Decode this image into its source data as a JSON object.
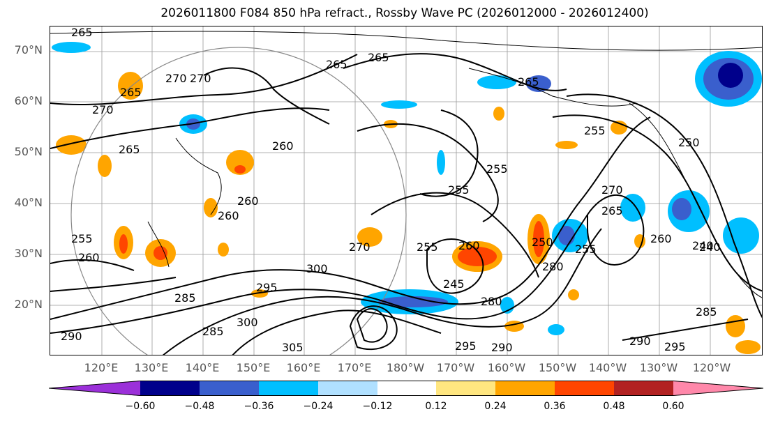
{
  "title": "2026011800 F084 850 hPa refract., Rossby Wave PC (2026012000 - 2026012400)",
  "lat_labels": [
    "70°N",
    "60°N",
    "50°N",
    "40°N",
    "30°N",
    "20°N"
  ],
  "lon_labels": [
    "120°E",
    "130°E",
    "140°E",
    "150°E",
    "160°E",
    "170°E",
    "180°W",
    "170°W",
    "160°W",
    "150°W",
    "140°W",
    "130°W",
    "120°W"
  ],
  "contour_labels": [
    "265",
    "270",
    "265",
    "265",
    "265",
    "270",
    "265",
    "270",
    "260",
    "255",
    "255",
    "265",
    "260",
    "260",
    "255",
    "260",
    "270",
    "255",
    "260",
    "245",
    "250",
    "280",
    "255",
    "270",
    "265",
    "260",
    "240",
    "300",
    "295",
    "285",
    "290",
    "300",
    "285",
    "305",
    "295",
    "290",
    "290",
    "295",
    "285",
    "280",
    "255",
    "250",
    "240"
  ],
  "colorbar": {
    "ticks": [
      "−0.60",
      "−0.48",
      "−0.36",
      "−0.24",
      "−0.12",
      "0.12",
      "0.24",
      "0.36",
      "0.48",
      "0.60"
    ],
    "colors": [
      "#9b30d9",
      "#00008b",
      "#3a5fcd",
      "#00bfff",
      "#b0e0ff",
      "#ffffff",
      "#ffe680",
      "#ffa500",
      "#ff4500",
      "#b22222",
      "#ff88aa"
    ]
  },
  "map_colors": {
    "land_outline": "#000000",
    "contour": "#000000",
    "grid": "#999999",
    "circle": "#888888"
  }
}
